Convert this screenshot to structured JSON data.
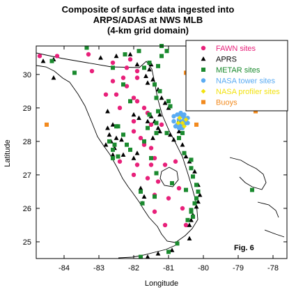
{
  "chart_data": {
    "type": "scatter",
    "title_lines": [
      "Composite of surface data ingested into",
      "ARPS/ADAS at NWS MLB",
      "(4-km grid domain)"
    ],
    "xlabel": "Longitude",
    "ylabel": "Latitude",
    "xlim": [
      -84.8,
      -77.6
    ],
    "ylim": [
      24.5,
      30.85
    ],
    "xticks": [
      -84,
      -83,
      -82,
      -81,
      -80,
      -79,
      -78
    ],
    "yticks": [
      25,
      26,
      27,
      28,
      29,
      30
    ],
    "annotation": "Fig. 6",
    "legend_position": "top-right",
    "series": [
      {
        "name": "FAWN sites",
        "marker": "circle",
        "color": "#e8207a",
        "points": [
          [
            -84.7,
            30.55
          ],
          [
            -84.2,
            30.55
          ],
          [
            -83.3,
            30.6
          ],
          [
            -82.6,
            30.35
          ],
          [
            -82.1,
            30.45
          ],
          [
            -82.2,
            30.2
          ],
          [
            -81.9,
            30.1
          ],
          [
            -83.2,
            30.1
          ],
          [
            -82.3,
            29.9
          ],
          [
            -81.9,
            29.9
          ],
          [
            -82.6,
            29.8
          ],
          [
            -82.2,
            29.65
          ],
          [
            -82.5,
            29.4
          ],
          [
            -82.8,
            29.4
          ],
          [
            -82.0,
            29.3
          ],
          [
            -81.9,
            29.2
          ],
          [
            -82.4,
            29.0
          ],
          [
            -81.7,
            29.0
          ],
          [
            -81.6,
            28.85
          ],
          [
            -82.0,
            28.6
          ],
          [
            -81.5,
            28.5
          ],
          [
            -81.2,
            28.5
          ],
          [
            -82.0,
            28.3
          ],
          [
            -81.8,
            28.1
          ],
          [
            -81.7,
            27.9
          ],
          [
            -81.5,
            27.8
          ],
          [
            -81.4,
            27.5
          ],
          [
            -82.4,
            27.4
          ],
          [
            -81.9,
            27.3
          ],
          [
            -81.5,
            27.3
          ],
          [
            -81.1,
            27.3
          ],
          [
            -80.8,
            27.4
          ],
          [
            -82.0,
            27.0
          ],
          [
            -81.6,
            26.9
          ],
          [
            -81.3,
            26.8
          ],
          [
            -80.7,
            26.6
          ],
          [
            -81.4,
            26.4
          ],
          [
            -81.0,
            26.3
          ],
          [
            -80.6,
            26.0
          ],
          [
            -81.4,
            25.9
          ],
          [
            -80.5,
            25.5
          ],
          [
            -81.1,
            25.5
          ]
        ]
      },
      {
        "name": "APRS",
        "marker": "triangle",
        "color": "#000000",
        "points": [
          [
            -84.6,
            30.4
          ],
          [
            -84.3,
            30.45
          ],
          [
            -84.3,
            29.9
          ],
          [
            -82.95,
            30.5
          ],
          [
            -82.5,
            30.55
          ],
          [
            -82.1,
            30.6
          ],
          [
            -81.9,
            30.3
          ],
          [
            -81.5,
            30.3
          ],
          [
            -81.55,
            30.15
          ],
          [
            -81.65,
            29.95
          ],
          [
            -81.6,
            29.75
          ],
          [
            -81.45,
            29.85
          ],
          [
            -81.3,
            29.55
          ],
          [
            -81.2,
            29.3
          ],
          [
            -81.1,
            29.15
          ],
          [
            -81.0,
            29.0
          ],
          [
            -82.0,
            28.8
          ],
          [
            -81.85,
            28.7
          ],
          [
            -81.6,
            28.6
          ],
          [
            -81.5,
            28.75
          ],
          [
            -81.4,
            28.6
          ],
          [
            -81.3,
            28.4
          ],
          [
            -81.25,
            28.8
          ],
          [
            -82.75,
            28.9
          ],
          [
            -82.6,
            28.5
          ],
          [
            -82.75,
            28.4
          ],
          [
            -82.7,
            28.2
          ],
          [
            -82.65,
            28.0
          ],
          [
            -82.5,
            28.1
          ],
          [
            -82.35,
            28.05
          ],
          [
            -82.8,
            27.9
          ],
          [
            -82.55,
            27.8
          ],
          [
            -82.6,
            27.6
          ],
          [
            -82.3,
            27.6
          ],
          [
            -82.0,
            27.5
          ],
          [
            -81.9,
            27.65
          ],
          [
            -80.95,
            28.2
          ],
          [
            -80.85,
            28.05
          ],
          [
            -80.7,
            28.3
          ],
          [
            -80.65,
            28.4
          ],
          [
            -80.6,
            27.9
          ],
          [
            -80.5,
            27.55
          ],
          [
            -80.4,
            27.4
          ],
          [
            -80.25,
            27.1
          ],
          [
            -80.15,
            26.7
          ],
          [
            -80.1,
            26.4
          ],
          [
            -80.15,
            26.2
          ],
          [
            -80.2,
            26.05
          ],
          [
            -80.3,
            25.8
          ],
          [
            -80.35,
            25.65
          ],
          [
            -80.4,
            25.5
          ],
          [
            -81.75,
            26.15
          ],
          [
            -81.7,
            26.35
          ],
          [
            -81.8,
            26.6
          ],
          [
            -81.45,
            28.1
          ],
          [
            -81.25,
            28.3
          ],
          [
            -80.4,
            25.1
          ],
          [
            -80.9,
            24.75
          ],
          [
            -81.3,
            24.65
          ],
          [
            -81.6,
            24.55
          ]
        ]
      },
      {
        "name": "METAR sites",
        "marker": "square",
        "color": "#1a8a2e",
        "points": [
          [
            -84.35,
            30.4
          ],
          [
            -83.35,
            30.8
          ],
          [
            -83.7,
            30.05
          ],
          [
            -82.6,
            30.2
          ],
          [
            -81.85,
            30.7
          ],
          [
            -81.55,
            30.35
          ],
          [
            -81.7,
            30.2
          ],
          [
            -81.3,
            30.25
          ],
          [
            -82.25,
            30.6
          ],
          [
            -81.2,
            30.85
          ],
          [
            -81.2,
            30.55
          ],
          [
            -81.05,
            30.7
          ],
          [
            -81.4,
            29.7
          ],
          [
            -81.25,
            29.5
          ],
          [
            -81.0,
            29.2
          ],
          [
            -80.95,
            29.05
          ],
          [
            -82.3,
            29.7
          ],
          [
            -82.1,
            29.2
          ],
          [
            -81.35,
            29.3
          ],
          [
            -81.3,
            28.9
          ],
          [
            -81.35,
            28.55
          ],
          [
            -81.55,
            28.8
          ],
          [
            -81.6,
            28.4
          ],
          [
            -82.5,
            28.45
          ],
          [
            -82.3,
            28.2
          ],
          [
            -82.7,
            28.0
          ],
          [
            -82.6,
            27.75
          ],
          [
            -82.6,
            27.5
          ],
          [
            -82.45,
            27.55
          ],
          [
            -82.55,
            27.9
          ],
          [
            -82.2,
            27.9
          ],
          [
            -81.7,
            28.0
          ],
          [
            -81.5,
            27.5
          ],
          [
            -81.35,
            28.25
          ],
          [
            -81.05,
            28.25
          ],
          [
            -80.7,
            28.55
          ],
          [
            -80.6,
            28.25
          ],
          [
            -80.7,
            28.1
          ],
          [
            -80.55,
            27.65
          ],
          [
            -80.35,
            27.45
          ],
          [
            -80.35,
            27.2
          ],
          [
            -80.3,
            26.95
          ],
          [
            -80.2,
            26.7
          ],
          [
            -80.15,
            26.5
          ],
          [
            -80.2,
            26.3
          ],
          [
            -80.25,
            26.15
          ],
          [
            -80.35,
            25.9
          ],
          [
            -80.3,
            25.75
          ],
          [
            -80.45,
            25.65
          ],
          [
            -81.8,
            26.5
          ],
          [
            -81.75,
            26.15
          ],
          [
            -81.4,
            26.35
          ],
          [
            -81.35,
            27.05
          ],
          [
            -80.9,
            26.75
          ],
          [
            -80.5,
            26.55
          ],
          [
            -82.1,
            27.75
          ],
          [
            -82.45,
            28.45
          ],
          [
            -80.35,
            25.95
          ],
          [
            -78.6,
            26.55
          ],
          [
            -81.8,
            24.55
          ],
          [
            -81.0,
            24.7
          ],
          [
            -80.75,
            24.95
          ]
        ]
      },
      {
        "name": "NASA tower sites",
        "marker": "circle",
        "color": "#5aabf2",
        "points": [
          [
            -80.85,
            28.75
          ],
          [
            -80.75,
            28.8
          ],
          [
            -80.65,
            28.75
          ],
          [
            -80.55,
            28.7
          ],
          [
            -80.45,
            28.7
          ],
          [
            -80.85,
            28.6
          ],
          [
            -80.7,
            28.65
          ],
          [
            -80.6,
            28.6
          ],
          [
            -80.5,
            28.6
          ],
          [
            -80.75,
            28.5
          ],
          [
            -80.65,
            28.5
          ],
          [
            -80.55,
            28.5
          ],
          [
            -80.7,
            28.4
          ],
          [
            -80.6,
            28.4
          ],
          [
            -80.55,
            28.8
          ],
          [
            -80.65,
            28.85
          ],
          [
            -80.45,
            28.55
          ],
          [
            -80.8,
            28.45
          ]
        ]
      },
      {
        "name": "NASA profiler sites",
        "marker": "diamond",
        "color": "#f2e20d",
        "points": [
          [
            -80.68,
            28.7
          ],
          [
            -80.6,
            28.55
          ],
          [
            -80.55,
            28.45
          ],
          [
            -80.72,
            28.55
          ],
          [
            -80.5,
            28.65
          ]
        ]
      },
      {
        "name": "Buoys",
        "marker": "square",
        "color": "#f28a1e",
        "points": [
          [
            -84.5,
            28.5
          ],
          [
            -80.5,
            30.05
          ],
          [
            -80.2,
            28.5
          ],
          [
            -78.5,
            28.9
          ]
        ]
      }
    ]
  }
}
